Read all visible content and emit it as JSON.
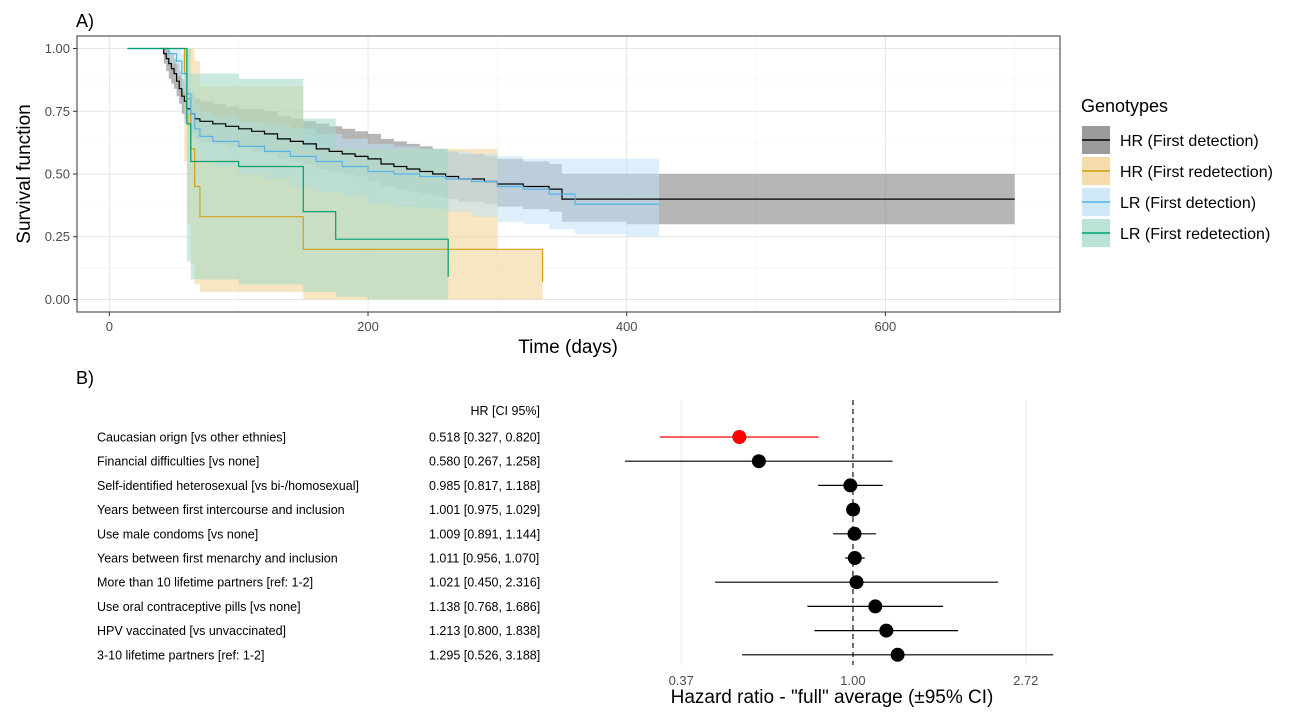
{
  "panel_a_label": "A)",
  "panel_b_label": "B)",
  "chart_data": [
    {
      "type": "line",
      "subtype": "kaplan-meier step curves with confidence bands",
      "title": "",
      "xlabel": "Time (days)",
      "ylabel": "Survival function",
      "xlim": [
        -25,
        735
      ],
      "ylim": [
        -0.05,
        1.05
      ],
      "x_ticks": [
        0,
        200,
        400,
        600
      ],
      "y_ticks": [
        0,
        0.25,
        0.5,
        0.75,
        1
      ],
      "y_tick_labels": [
        "0.00",
        "0.25",
        "0.50",
        "0.75",
        "1.00"
      ],
      "grid": true,
      "legend_title": "Genotypes",
      "legend_position": "right",
      "series": [
        {
          "name": "HR (First detection)",
          "line_color": "#000000",
          "band_color": "#7a7a7a",
          "x": [
            40,
            42,
            44,
            46,
            48,
            50,
            52,
            54,
            56,
            58,
            60,
            63,
            66,
            70,
            80,
            90,
            100,
            110,
            120,
            130,
            140,
            150,
            160,
            170,
            180,
            190,
            200,
            210,
            220,
            230,
            240,
            250,
            260,
            270,
            280,
            290,
            300,
            320,
            340,
            350,
            360,
            380,
            400,
            420,
            440,
            460,
            700
          ],
          "y": [
            1.0,
            0.98,
            0.96,
            0.94,
            0.92,
            0.9,
            0.87,
            0.84,
            0.81,
            0.79,
            0.76,
            0.74,
            0.72,
            0.71,
            0.7,
            0.69,
            0.68,
            0.67,
            0.66,
            0.64,
            0.63,
            0.62,
            0.6,
            0.59,
            0.58,
            0.57,
            0.56,
            0.54,
            0.53,
            0.52,
            0.51,
            0.5,
            0.49,
            0.48,
            0.48,
            0.47,
            0.46,
            0.45,
            0.44,
            0.4,
            0.4,
            0.4,
            0.4,
            0.4,
            0.4,
            0.4,
            0.4
          ],
          "lower": [
            1.0,
            0.94,
            0.91,
            0.88,
            0.86,
            0.84,
            0.81,
            0.78,
            0.74,
            0.72,
            0.69,
            0.66,
            0.64,
            0.63,
            0.62,
            0.61,
            0.6,
            0.59,
            0.58,
            0.56,
            0.55,
            0.54,
            0.52,
            0.51,
            0.5,
            0.49,
            0.47,
            0.45,
            0.44,
            0.43,
            0.42,
            0.41,
            0.4,
            0.39,
            0.39,
            0.38,
            0.37,
            0.36,
            0.35,
            0.31,
            0.31,
            0.31,
            0.3,
            0.3,
            0.3,
            0.3,
            0.3
          ],
          "upper": [
            1.0,
            1.0,
            1.0,
            0.99,
            0.98,
            0.96,
            0.94,
            0.91,
            0.88,
            0.86,
            0.84,
            0.82,
            0.8,
            0.79,
            0.78,
            0.77,
            0.76,
            0.76,
            0.75,
            0.73,
            0.72,
            0.71,
            0.7,
            0.69,
            0.68,
            0.67,
            0.66,
            0.64,
            0.63,
            0.62,
            0.61,
            0.6,
            0.59,
            0.58,
            0.58,
            0.57,
            0.56,
            0.55,
            0.54,
            0.5,
            0.5,
            0.5,
            0.5,
            0.5,
            0.5,
            0.5,
            0.5
          ]
        },
        {
          "name": "HR (First redetection)",
          "line_color": "#d4a017",
          "band_color": "#f2d28f",
          "x": [
            40,
            58,
            60,
            63,
            66,
            70,
            110,
            150,
            175,
            200,
            260,
            300,
            335
          ],
          "y": [
            1.0,
            0.9,
            0.8,
            0.6,
            0.45,
            0.33,
            0.33,
            0.2,
            0.2,
            0.2,
            0.2,
            0.2,
            0.07
          ],
          "lower": [
            1.0,
            0.55,
            0.3,
            0.14,
            0.06,
            0.03,
            0.03,
            0.0,
            0.0,
            0.0,
            0.0,
            0.0,
            0.0
          ],
          "upper": [
            1.0,
            1.0,
            1.0,
            1.0,
            0.95,
            0.85,
            0.85,
            0.6,
            0.6,
            0.6,
            0.6,
            0.2,
            0.2
          ]
        },
        {
          "name": "LR (First detection)",
          "line_color": "#56b4e9",
          "band_color": "#bfe1f6",
          "x": [
            14,
            40,
            46,
            52,
            56,
            60,
            63,
            66,
            70,
            80,
            100,
            120,
            140,
            160,
            180,
            200,
            220,
            240,
            260,
            280,
            300,
            320,
            340,
            360,
            400,
            425
          ],
          "y": [
            1.0,
            1.0,
            0.98,
            0.95,
            0.9,
            0.82,
            0.74,
            0.68,
            0.65,
            0.63,
            0.61,
            0.59,
            0.57,
            0.55,
            0.53,
            0.51,
            0.5,
            0.49,
            0.48,
            0.47,
            0.45,
            0.44,
            0.42,
            0.38,
            0.38,
            0.38
          ],
          "lower": [
            1.0,
            1.0,
            0.94,
            0.89,
            0.83,
            0.74,
            0.65,
            0.58,
            0.55,
            0.53,
            0.5,
            0.48,
            0.45,
            0.43,
            0.41,
            0.38,
            0.37,
            0.36,
            0.35,
            0.33,
            0.31,
            0.3,
            0.28,
            0.26,
            0.25,
            0.25
          ],
          "upper": [
            1.0,
            1.0,
            1.0,
            1.0,
            0.98,
            0.9,
            0.83,
            0.78,
            0.75,
            0.73,
            0.71,
            0.7,
            0.68,
            0.66,
            0.64,
            0.62,
            0.61,
            0.6,
            0.59,
            0.58,
            0.57,
            0.56,
            0.56,
            0.56,
            0.56,
            0.56
          ]
        },
        {
          "name": "LR (First redetection)",
          "line_color": "#009e73",
          "band_color": "#a2d9c5",
          "x": [
            14,
            58,
            60,
            63,
            100,
            150,
            175,
            200,
            262
          ],
          "y": [
            1.0,
            1.0,
            0.7,
            0.55,
            0.53,
            0.35,
            0.24,
            0.24,
            0.09
          ],
          "lower": [
            1.0,
            0.7,
            0.15,
            0.08,
            0.06,
            0.03,
            0.01,
            0.0,
            0.0
          ],
          "upper": [
            1.0,
            1.0,
            1.0,
            0.9,
            0.88,
            0.72,
            0.6,
            0.6,
            0.6
          ]
        }
      ]
    },
    {
      "type": "scatter",
      "subtype": "forest plot",
      "title": "",
      "xlabel": "Hazard ratio - \"full\" average (±95% CI)",
      "x_scale": "log",
      "xlim": [
        0.2,
        3.9
      ],
      "x_ticks": [
        0.37,
        1.0,
        2.72
      ],
      "x_tick_labels": [
        "0.37",
        "1.00",
        "2.72"
      ],
      "reference_line": 1.0,
      "grid": true,
      "table_header": "HR [CI 95%]",
      "rows": [
        {
          "label": "Caucasian orign [vs other ethnies]",
          "hr_text": "0.518 [0.327, 0.820]",
          "hr": 0.518,
          "lower": 0.327,
          "upper": 0.82,
          "color": "#ff0000"
        },
        {
          "label": "Financial difficulties [vs none]",
          "hr_text": "0.580 [0.267, 1.258]",
          "hr": 0.58,
          "lower": 0.267,
          "upper": 1.258,
          "color": "#000000"
        },
        {
          "label": "Self-identified heterosexual [vs bi-/homosexual]",
          "hr_text": "0.985 [0.817, 1.188]",
          "hr": 0.985,
          "lower": 0.817,
          "upper": 1.188,
          "color": "#000000"
        },
        {
          "label": "Years between first intercourse and inclusion",
          "hr_text": "1.001 [0.975, 1.029]",
          "hr": 1.001,
          "lower": 0.975,
          "upper": 1.029,
          "color": "#000000"
        },
        {
          "label": "Use male condoms [vs none]",
          "hr_text": "1.009 [0.891, 1.144]",
          "hr": 1.009,
          "lower": 0.891,
          "upper": 1.144,
          "color": "#000000"
        },
        {
          "label": "Years between first menarchy and inclusion",
          "hr_text": "1.011 [0.956, 1.070]",
          "hr": 1.011,
          "lower": 0.956,
          "upper": 1.07,
          "color": "#000000"
        },
        {
          "label": "More than 10 lifetime partners [ref: 1-2]",
          "hr_text": "1.021 [0.450, 2.316]",
          "hr": 1.021,
          "lower": 0.45,
          "upper": 2.316,
          "color": "#000000"
        },
        {
          "label": "Use oral contraceptive pills [vs none]",
          "hr_text": "1.138 [0.768, 1.686]",
          "hr": 1.138,
          "lower": 0.768,
          "upper": 1.686,
          "color": "#000000"
        },
        {
          "label": "HPV vaccinated [vs unvaccinated]",
          "hr_text": "1.213 [0.800, 1.838]",
          "hr": 1.213,
          "lower": 0.8,
          "upper": 1.838,
          "color": "#000000"
        },
        {
          "label": "3-10 lifetime partners [ref: 1-2]",
          "hr_text": "1.295 [0.526, 3.188]",
          "hr": 1.295,
          "lower": 0.526,
          "upper": 3.188,
          "color": "#000000"
        }
      ]
    }
  ]
}
